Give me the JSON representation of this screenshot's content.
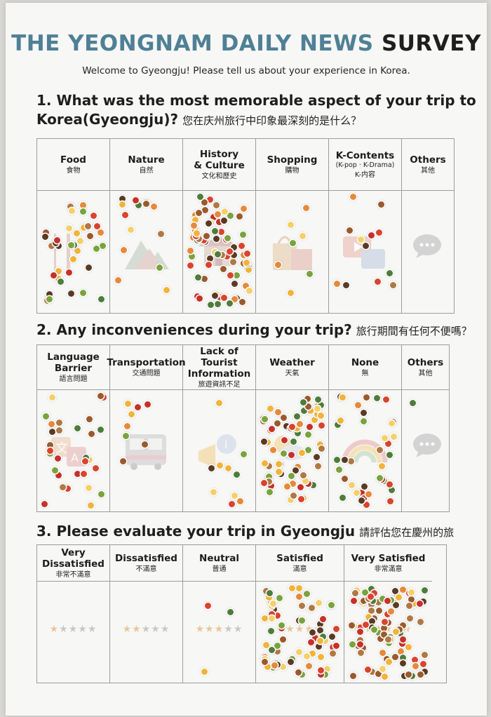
{
  "title": {
    "part1": "THE YEONGNAM DAILY NEWS",
    "part2": "SURVEY"
  },
  "welcome": "Welcome to Gyeongju! Please tell us about your experience in Korea.",
  "q1": {
    "line1": "1. What was the most memorable aspect of your trip to",
    "line2": "Korea(Gyeongju)?",
    "zh": "您在庆州旅行中印象最深刻的是什么？",
    "columns": [
      {
        "en": "Food",
        "zh": "食物"
      },
      {
        "en": "Nature",
        "zh": "自然"
      },
      {
        "en": "History\n& Culture",
        "zh": "文化和歷史"
      },
      {
        "en": "Shopping",
        "zh": "購物"
      },
      {
        "en": "K-Contents",
        "sub": "(K-pop · K-Drama)",
        "zh": "K-内容"
      },
      {
        "en": "Others",
        "zh": "其他"
      }
    ]
  },
  "q2": {
    "line1": "2. Any inconveniences during your trip?",
    "zh": "旅行期間有任何不便嗎？",
    "columns": [
      {
        "en": "Language\nBarrier",
        "zh": "語言問題"
      },
      {
        "en": "Transportation",
        "zh": "交通問題"
      },
      {
        "en": "Lack of Tourist\nInformation",
        "zh": "旅遊資訊不足"
      },
      {
        "en": "Weather",
        "zh": "天氣"
      },
      {
        "en": "None",
        "zh": "無"
      },
      {
        "en": "Others",
        "zh": "其他"
      }
    ]
  },
  "q3": {
    "line1": "3. Please evaluate your trip in Gyeongju",
    "zh": "請評估您在慶州的旅",
    "columns": [
      {
        "en": "Very\nDissatisfied",
        "zh": "非常不滿意",
        "stars": 1
      },
      {
        "en": "Dissatisfied",
        "zh": "不滿意",
        "stars": 2
      },
      {
        "en": "Neutral",
        "zh": "普通",
        "stars": 3
      },
      {
        "en": "Satisfied",
        "zh": "滿意",
        "stars": 4
      },
      {
        "en": "Very Satisfied",
        "zh": "非常滿意",
        "stars": 5
      }
    ]
  },
  "sticker_colors": [
    "#d8442f",
    "#f0b43a",
    "#7aa33c",
    "#9b5a2c",
    "#e58a3a",
    "#5a3b22",
    "#c6312a",
    "#f3d06a",
    "#4e7d3a",
    "#b07844"
  ],
  "icons": {
    "food": "food-utensils-icon",
    "nature": "mountain-icon",
    "history": "palace-icon",
    "shopping": "shopping-bag-icon",
    "kcontents": "media-play-icon",
    "others": "speech-bubble-icon",
    "language": "translate-icon",
    "transport": "bus-icon",
    "info": "info-megaphone-icon",
    "weather": "sun-cloud-icon",
    "none": "rainbow-icon",
    "star": "star-icon"
  }
}
